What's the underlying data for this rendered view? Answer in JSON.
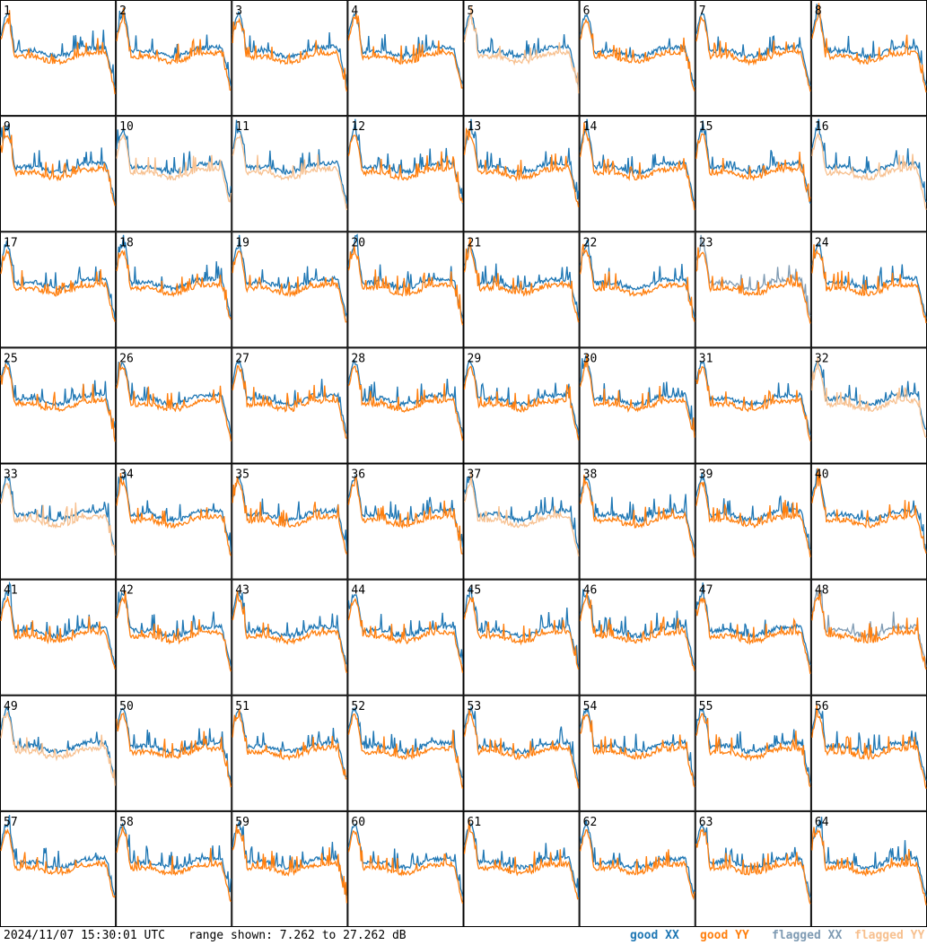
{
  "footer": {
    "timestamp": "2024/11/07 15:30:01 UTC",
    "range": "range shown: 7.262 to 27.262 dB"
  },
  "legend": [
    {
      "label": "good XX",
      "color": "#1f77b4"
    },
    {
      "label": "good YY",
      "color": "#ff7f0e"
    },
    {
      "label": "flagged XX",
      "color": "#7f9bb3"
    },
    {
      "label": "flagged YY",
      "color": "#f7c08f"
    }
  ],
  "chart_data": {
    "type": "line",
    "grid_rows": 8,
    "grid_cols": 8,
    "ylim_db": [
      7.262,
      27.262
    ],
    "panel_labels": [
      "1",
      "2",
      "3",
      "4",
      "5",
      "6",
      "7",
      "8",
      "9",
      "10",
      "11",
      "12",
      "13",
      "14",
      "15",
      "16",
      "17",
      "18",
      "19",
      "20",
      "21",
      "22",
      "23",
      "24",
      "25",
      "26",
      "27",
      "28",
      "29",
      "30",
      "31",
      "32",
      "33",
      "34",
      "35",
      "36",
      "37",
      "38",
      "39",
      "40",
      "41",
      "42",
      "43",
      "44",
      "45",
      "46",
      "47",
      "48",
      "49",
      "50",
      "51",
      "52",
      "53",
      "54",
      "55",
      "56",
      "57",
      "58",
      "59",
      "60",
      "61",
      "62",
      "63",
      "64"
    ],
    "series_styles": {
      "good_xx": "#1f77b4",
      "good_yy": "#ff7f0e",
      "flagged_xx": "#7f9bb3",
      "flagged_yy": "#f7c08f"
    },
    "flagged": {
      "xx": [
        23,
        48
      ],
      "yy": [
        5,
        10,
        11,
        16,
        32,
        33,
        37,
        49
      ]
    }
  }
}
